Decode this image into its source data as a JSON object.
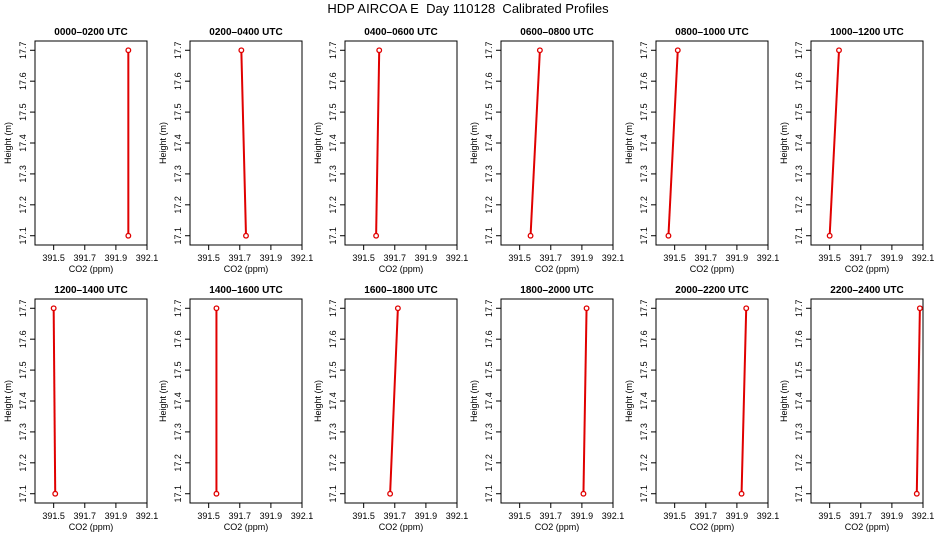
{
  "title": "HDP AIRCOA E  Day 110128  Calibrated Profiles",
  "colors": {
    "profile": "#e00000",
    "axis": "#000000",
    "background": "#ffffff"
  },
  "chart_data": [
    {
      "type": "line",
      "title": "0000–0200 UTC",
      "xlabel": "CO2 (ppm)",
      "ylabel": "Height (m)",
      "xlim": [
        391.38,
        392.1
      ],
      "ylim": [
        17.07,
        17.73
      ],
      "grid": false,
      "x_ticks": [
        "391.5",
        "391.7",
        "391.9",
        "392.1"
      ],
      "y_ticks": [
        "17.1",
        "17.2",
        "17.3",
        "17.4",
        "17.5",
        "17.6",
        "17.7"
      ],
      "x_tick_values": [
        391.5,
        391.7,
        391.9,
        392.1
      ],
      "y_tick_values": [
        17.1,
        17.2,
        17.3,
        17.4,
        17.5,
        17.6,
        17.7
      ],
      "series": [
        {
          "x": [
            391.98,
            391.98
          ],
          "y": [
            17.1,
            17.7
          ],
          "marker": "circle"
        }
      ]
    },
    {
      "type": "line",
      "title": "0200–0400 UTC",
      "xlabel": "CO2 (ppm)",
      "ylabel": "Height (m)",
      "xlim": [
        391.38,
        392.1
      ],
      "ylim": [
        17.07,
        17.73
      ],
      "grid": false,
      "x_ticks": [
        "391.5",
        "391.7",
        "391.9",
        "392.1"
      ],
      "y_ticks": [
        "17.1",
        "17.2",
        "17.3",
        "17.4",
        "17.5",
        "17.6",
        "17.7"
      ],
      "x_tick_values": [
        391.5,
        391.7,
        391.9,
        392.1
      ],
      "y_tick_values": [
        17.1,
        17.2,
        17.3,
        17.4,
        17.5,
        17.6,
        17.7
      ],
      "series": [
        {
          "x": [
            391.74,
            391.71
          ],
          "y": [
            17.1,
            17.7
          ],
          "marker": "circle"
        }
      ]
    },
    {
      "type": "line",
      "title": "0400–0600 UTC",
      "xlabel": "CO2 (ppm)",
      "ylabel": "Height (m)",
      "xlim": [
        391.38,
        392.1
      ],
      "ylim": [
        17.07,
        17.73
      ],
      "grid": false,
      "x_ticks": [
        "391.5",
        "391.7",
        "391.9",
        "392.1"
      ],
      "y_ticks": [
        "17.1",
        "17.2",
        "17.3",
        "17.4",
        "17.5",
        "17.6",
        "17.7"
      ],
      "x_tick_values": [
        391.5,
        391.7,
        391.9,
        392.1
      ],
      "y_tick_values": [
        17.1,
        17.2,
        17.3,
        17.4,
        17.5,
        17.6,
        17.7
      ],
      "series": [
        {
          "x": [
            391.58,
            391.6
          ],
          "y": [
            17.1,
            17.7
          ],
          "marker": "circle"
        }
      ]
    },
    {
      "type": "line",
      "title": "0600–0800 UTC",
      "xlabel": "CO2 (ppm)",
      "ylabel": "Height (m)",
      "xlim": [
        391.38,
        392.1
      ],
      "ylim": [
        17.07,
        17.73
      ],
      "grid": false,
      "x_ticks": [
        "391.5",
        "391.7",
        "391.9",
        "392.1"
      ],
      "y_ticks": [
        "17.1",
        "17.2",
        "17.3",
        "17.4",
        "17.5",
        "17.6",
        "17.7"
      ],
      "x_tick_values": [
        391.5,
        391.7,
        391.9,
        392.1
      ],
      "y_tick_values": [
        17.1,
        17.2,
        17.3,
        17.4,
        17.5,
        17.6,
        17.7
      ],
      "series": [
        {
          "x": [
            391.57,
            391.63
          ],
          "y": [
            17.1,
            17.7
          ],
          "marker": "circle"
        }
      ]
    },
    {
      "type": "line",
      "title": "0800–1000 UTC",
      "xlabel": "CO2 (ppm)",
      "ylabel": "Height (m)",
      "xlim": [
        391.38,
        392.1
      ],
      "ylim": [
        17.07,
        17.73
      ],
      "grid": false,
      "x_ticks": [
        "391.5",
        "391.7",
        "391.9",
        "392.1"
      ],
      "y_ticks": [
        "17.1",
        "17.2",
        "17.3",
        "17.4",
        "17.5",
        "17.6",
        "17.7"
      ],
      "x_tick_values": [
        391.5,
        391.7,
        391.9,
        392.1
      ],
      "y_tick_values": [
        17.1,
        17.2,
        17.3,
        17.4,
        17.5,
        17.6,
        17.7
      ],
      "series": [
        {
          "x": [
            391.46,
            391.52
          ],
          "y": [
            17.1,
            17.7
          ],
          "marker": "circle"
        }
      ]
    },
    {
      "type": "line",
      "title": "1000–1200 UTC",
      "xlabel": "CO2 (ppm)",
      "ylabel": "Height (m)",
      "xlim": [
        391.38,
        392.1
      ],
      "ylim": [
        17.07,
        17.73
      ],
      "grid": false,
      "x_ticks": [
        "391.5",
        "391.7",
        "391.9",
        "392.1"
      ],
      "y_ticks": [
        "17.1",
        "17.2",
        "17.3",
        "17.4",
        "17.5",
        "17.6",
        "17.7"
      ],
      "x_tick_values": [
        391.5,
        391.7,
        391.9,
        392.1
      ],
      "y_tick_values": [
        17.1,
        17.2,
        17.3,
        17.4,
        17.5,
        17.6,
        17.7
      ],
      "series": [
        {
          "x": [
            391.5,
            391.56
          ],
          "y": [
            17.1,
            17.7
          ],
          "marker": "circle"
        }
      ]
    },
    {
      "type": "line",
      "title": "1200–1400 UTC",
      "xlabel": "CO2 (ppm)",
      "ylabel": "Height (m)",
      "xlim": [
        391.38,
        392.1
      ],
      "ylim": [
        17.07,
        17.73
      ],
      "grid": false,
      "x_ticks": [
        "391.5",
        "391.7",
        "391.9",
        "392.1"
      ],
      "y_ticks": [
        "17.1",
        "17.2",
        "17.3",
        "17.4",
        "17.5",
        "17.6",
        "17.7"
      ],
      "x_tick_values": [
        391.5,
        391.7,
        391.9,
        392.1
      ],
      "y_tick_values": [
        17.1,
        17.2,
        17.3,
        17.4,
        17.5,
        17.6,
        17.7
      ],
      "series": [
        {
          "x": [
            391.51,
            391.5
          ],
          "y": [
            17.1,
            17.7
          ],
          "marker": "circle"
        }
      ]
    },
    {
      "type": "line",
      "title": "1400–1600 UTC",
      "xlabel": "CO2 (ppm)",
      "ylabel": "Height (m)",
      "xlim": [
        391.38,
        392.1
      ],
      "ylim": [
        17.07,
        17.73
      ],
      "grid": false,
      "x_ticks": [
        "391.5",
        "391.7",
        "391.9",
        "392.1"
      ],
      "y_ticks": [
        "17.1",
        "17.2",
        "17.3",
        "17.4",
        "17.5",
        "17.6",
        "17.7"
      ],
      "x_tick_values": [
        391.5,
        391.7,
        391.9,
        392.1
      ],
      "y_tick_values": [
        17.1,
        17.2,
        17.3,
        17.4,
        17.5,
        17.6,
        17.7
      ],
      "series": [
        {
          "x": [
            391.55,
            391.55
          ],
          "y": [
            17.1,
            17.7
          ],
          "marker": "circle"
        }
      ]
    },
    {
      "type": "line",
      "title": "1600–1800 UTC",
      "xlabel": "CO2 (ppm)",
      "ylabel": "Height (m)",
      "xlim": [
        391.38,
        392.1
      ],
      "ylim": [
        17.07,
        17.73
      ],
      "grid": false,
      "x_ticks": [
        "391.5",
        "391.7",
        "391.9",
        "392.1"
      ],
      "y_ticks": [
        "17.1",
        "17.2",
        "17.3",
        "17.4",
        "17.5",
        "17.6",
        "17.7"
      ],
      "x_tick_values": [
        391.5,
        391.7,
        391.9,
        392.1
      ],
      "y_tick_values": [
        17.1,
        17.2,
        17.3,
        17.4,
        17.5,
        17.6,
        17.7
      ],
      "series": [
        {
          "x": [
            391.67,
            391.72
          ],
          "y": [
            17.1,
            17.7
          ],
          "marker": "circle"
        }
      ]
    },
    {
      "type": "line",
      "title": "1800–2000 UTC",
      "xlabel": "CO2 (ppm)",
      "ylabel": "Height (m)",
      "xlim": [
        391.38,
        392.1
      ],
      "ylim": [
        17.07,
        17.73
      ],
      "grid": false,
      "x_ticks": [
        "391.5",
        "391.7",
        "391.9",
        "392.1"
      ],
      "y_ticks": [
        "17.1",
        "17.2",
        "17.3",
        "17.4",
        "17.5",
        "17.6",
        "17.7"
      ],
      "x_tick_values": [
        391.5,
        391.7,
        391.9,
        392.1
      ],
      "y_tick_values": [
        17.1,
        17.2,
        17.3,
        17.4,
        17.5,
        17.6,
        17.7
      ],
      "series": [
        {
          "x": [
            391.91,
            391.93
          ],
          "y": [
            17.1,
            17.7
          ],
          "marker": "circle"
        }
      ]
    },
    {
      "type": "line",
      "title": "2000–2200 UTC",
      "xlabel": "CO2 (ppm)",
      "ylabel": "Height (m)",
      "xlim": [
        391.38,
        392.1
      ],
      "ylim": [
        17.07,
        17.73
      ],
      "grid": false,
      "x_ticks": [
        "391.5",
        "391.7",
        "391.9",
        "392.1"
      ],
      "y_ticks": [
        "17.1",
        "17.2",
        "17.3",
        "17.4",
        "17.5",
        "17.6",
        "17.7"
      ],
      "x_tick_values": [
        391.5,
        391.7,
        391.9,
        392.1
      ],
      "y_tick_values": [
        17.1,
        17.2,
        17.3,
        17.4,
        17.5,
        17.6,
        17.7
      ],
      "series": [
        {
          "x": [
            391.93,
            391.96
          ],
          "y": [
            17.1,
            17.7
          ],
          "marker": "circle"
        }
      ]
    },
    {
      "type": "line",
      "title": "2200–2400 UTC",
      "xlabel": "CO2 (ppm)",
      "ylabel": "Height (m)",
      "xlim": [
        391.38,
        392.1
      ],
      "ylim": [
        17.07,
        17.73
      ],
      "grid": false,
      "x_ticks": [
        "391.5",
        "391.7",
        "391.9",
        "392.1"
      ],
      "y_ticks": [
        "17.1",
        "17.2",
        "17.3",
        "17.4",
        "17.5",
        "17.6",
        "17.7"
      ],
      "x_tick_values": [
        391.5,
        391.7,
        391.9,
        392.1
      ],
      "y_tick_values": [
        17.1,
        17.2,
        17.3,
        17.4,
        17.5,
        17.6,
        17.7
      ],
      "series": [
        {
          "x": [
            392.06,
            392.08
          ],
          "y": [
            17.1,
            17.7
          ],
          "marker": "circle"
        }
      ]
    }
  ]
}
